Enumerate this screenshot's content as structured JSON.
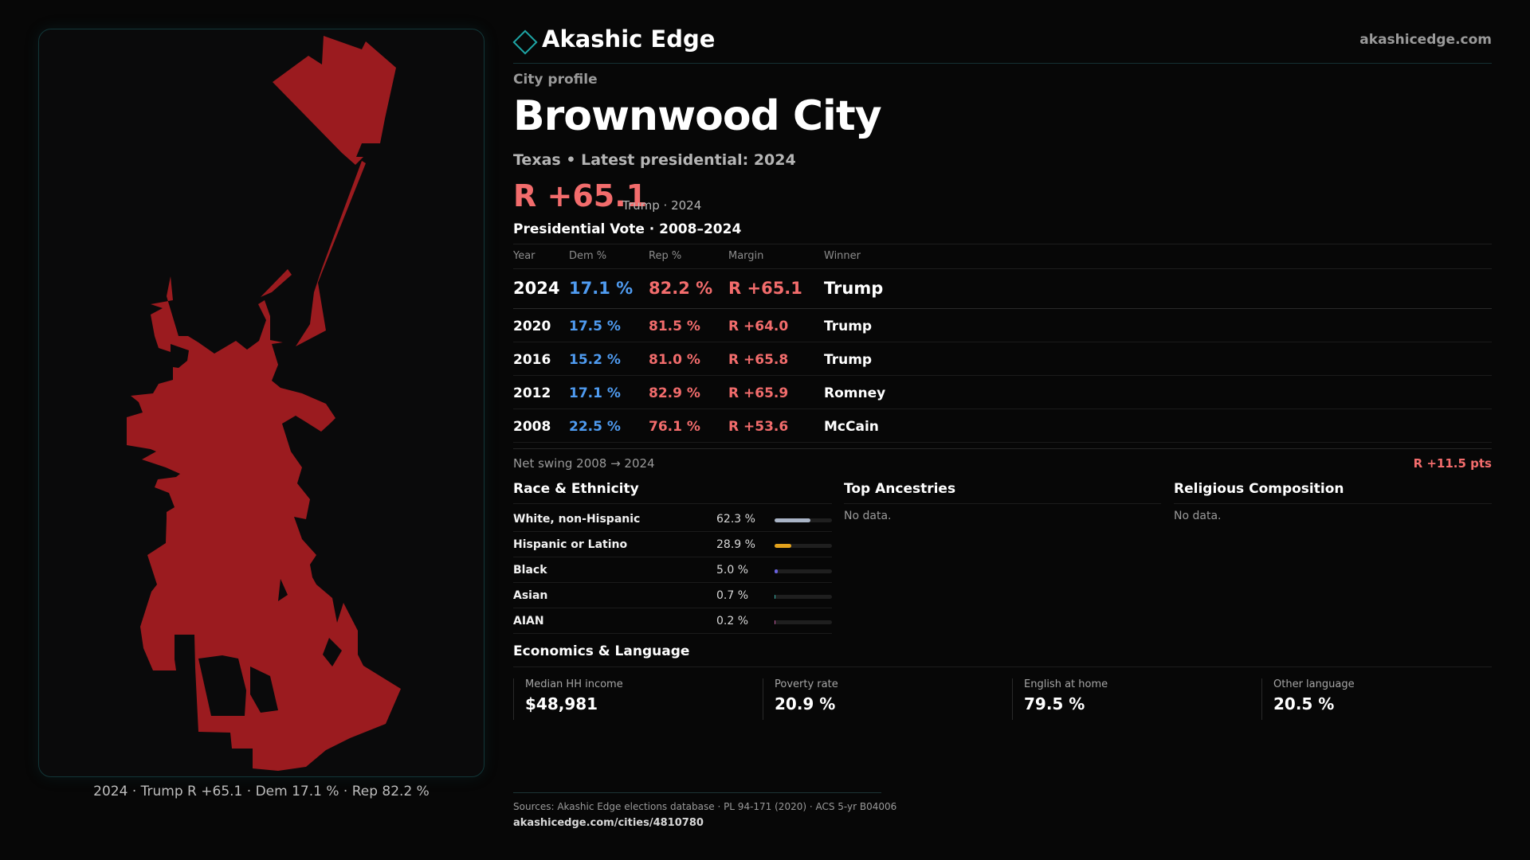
{
  "brand": {
    "name": "Akashic Edge",
    "site": "akashicedge.com"
  },
  "profile": {
    "eyebrow": "City profile",
    "title": "Brownwood City",
    "subtitle": "Texas • Latest presidential: 2024",
    "headline_margin": "R +65.1",
    "headline_note": "Trump · 2024"
  },
  "map": {
    "caption": "2024 · Trump R +65.1 · Dem 17.1 % · Rep 82.2 %",
    "fill_color": "#9b1b1f"
  },
  "vote": {
    "section_title": "Presidential Vote · 2008–2024",
    "headers": {
      "year": "Year",
      "dem": "Dem %",
      "rep": "Rep %",
      "margin": "Margin",
      "winner": "Winner"
    },
    "rows": [
      {
        "year": "2024",
        "dem": "17.1 %",
        "rep": "82.2 %",
        "margin": "R +65.1",
        "winner": "Trump"
      },
      {
        "year": "2020",
        "dem": "17.5 %",
        "rep": "81.5 %",
        "margin": "R +64.0",
        "winner": "Trump"
      },
      {
        "year": "2016",
        "dem": "15.2 %",
        "rep": "81.0 %",
        "margin": "R +65.8",
        "winner": "Trump"
      },
      {
        "year": "2012",
        "dem": "17.1 %",
        "rep": "82.9 %",
        "margin": "R +65.9",
        "winner": "Romney"
      },
      {
        "year": "2008",
        "dem": "22.5 %",
        "rep": "76.1 %",
        "margin": "R +53.6",
        "winner": "McCain"
      }
    ],
    "swing_label": "Net swing 2008 → 2024",
    "swing_value": "R +11.5 pts"
  },
  "race": {
    "section_title": "Race & Ethnicity",
    "items": [
      {
        "label": "White, non-Hispanic",
        "pct": "62.3 %",
        "value": 62.3,
        "color": "#a9b4c6"
      },
      {
        "label": "Hispanic or Latino",
        "pct": "28.9 %",
        "value": 28.9,
        "color": "#e3a21c"
      },
      {
        "label": "Black",
        "pct": "5.0 %",
        "value": 5.0,
        "color": "#6a62e0"
      },
      {
        "label": "Asian",
        "pct": "0.7 %",
        "value": 0.7,
        "color": "#3bb1a8"
      },
      {
        "label": "AIAN",
        "pct": "0.2 %",
        "value": 0.2,
        "color": "#c05a9e"
      }
    ]
  },
  "ancestries": {
    "section_title": "Top Ancestries",
    "empty": "No data."
  },
  "religion": {
    "section_title": "Religious Composition",
    "empty": "No data."
  },
  "economics": {
    "section_title": "Economics & Language",
    "cards": [
      {
        "label": "Median HH income",
        "value": "$48,981"
      },
      {
        "label": "Poverty rate",
        "value": "20.9 %"
      },
      {
        "label": "English at home",
        "value": "79.5 %"
      },
      {
        "label": "Other language",
        "value": "20.5 %"
      }
    ]
  },
  "footer": {
    "sources": "Sources: Akashic Edge elections database · PL 94-171 (2020) · ACS 5-yr B04006",
    "url": "akashicedge.com/cities/4810780"
  }
}
